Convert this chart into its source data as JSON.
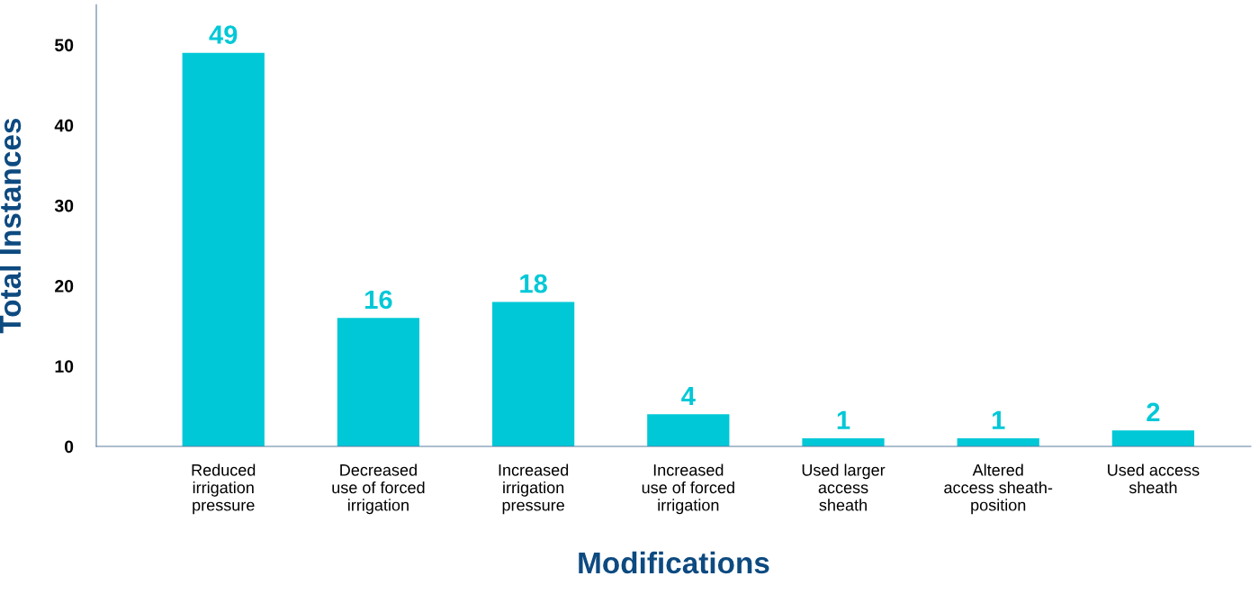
{
  "chart_data": {
    "type": "bar",
    "xlabel": "Modifications",
    "ylabel": "Total Instances",
    "categories": [
      "Reduced\nirrigation\npressure",
      "Decreased\nuse of forced\nirrigation",
      "Increased\nirrigation\npressure",
      "Increased\nuse of forced\nirrigation",
      "Used larger\naccess\nsheath",
      "Altered\naccess sheath-\nposition",
      "Used access\nsheath"
    ],
    "values": [
      49,
      16,
      18,
      4,
      1,
      1,
      2
    ],
    "color": "#00c8d7",
    "ylim": [
      0,
      55
    ],
    "yticks": [
      0,
      10,
      20,
      30,
      40,
      50
    ],
    "data_labels": true,
    "grid": false,
    "legend": false
  }
}
